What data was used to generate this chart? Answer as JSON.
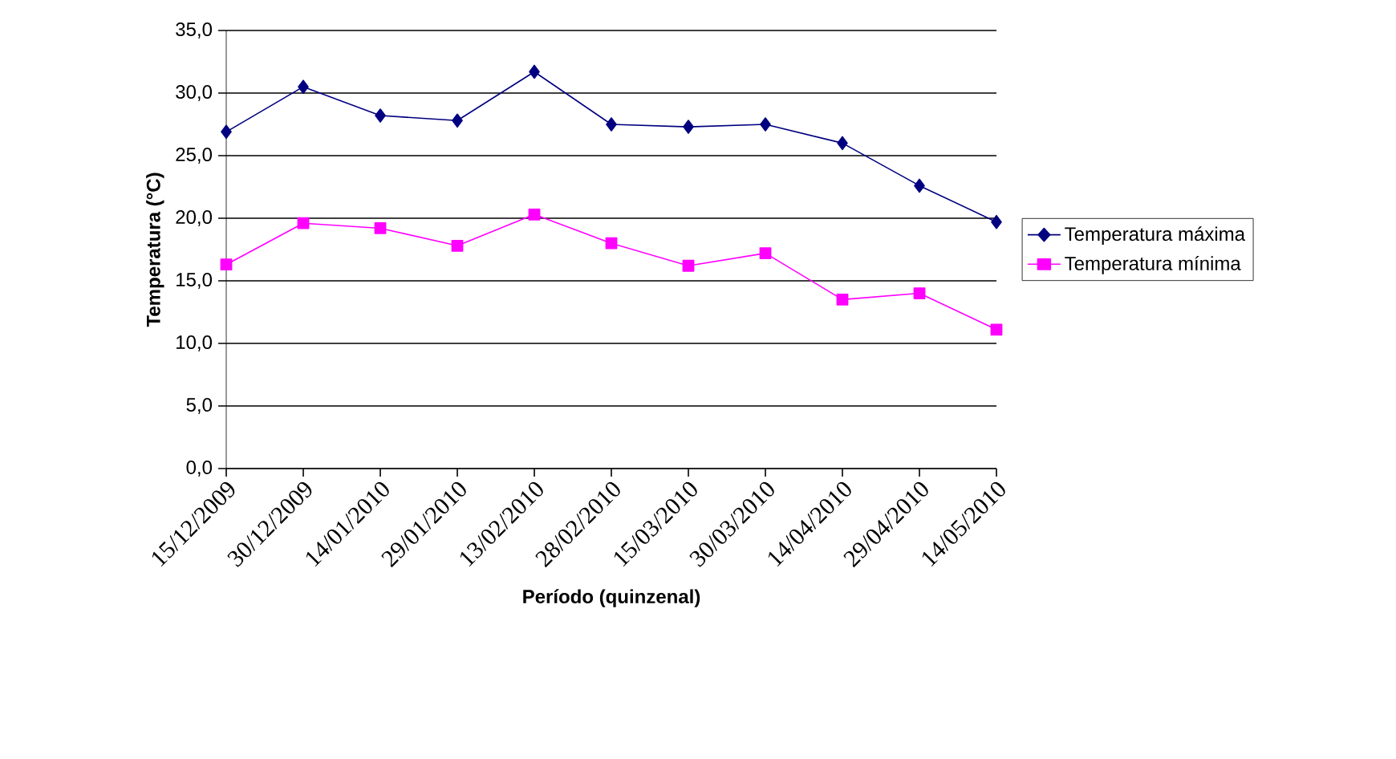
{
  "chart_data": {
    "type": "line",
    "xlabel": "Período (quinzenal)",
    "ylabel": "Temperatura (°C)",
    "categories": [
      "15/12/2009",
      "30/12/2009",
      "14/01/2010",
      "29/01/2010",
      "13/02/2010",
      "28/02/2010",
      "15/03/2010",
      "30/03/2010",
      "14/04/2010",
      "29/04/2010",
      "14/05/2010"
    ],
    "series": [
      {
        "name": "Temperatura máxima",
        "color": "#000080",
        "marker": "diamond",
        "values": [
          26.9,
          30.5,
          28.2,
          27.8,
          31.7,
          27.5,
          27.3,
          27.5,
          26.0,
          22.6,
          19.7
        ]
      },
      {
        "name": "Temperatura mínima",
        "color": "#ff00ff",
        "marker": "square",
        "values": [
          16.3,
          19.6,
          19.2,
          17.8,
          20.3,
          18.0,
          16.2,
          17.2,
          13.5,
          14.0,
          11.1
        ]
      }
    ],
    "ylim": [
      0,
      35
    ],
    "yticks": [
      {
        "value": 0,
        "label": "0,0"
      },
      {
        "value": 5,
        "label": "5,0"
      },
      {
        "value": 10,
        "label": "10,0"
      },
      {
        "value": 15,
        "label": "15,0"
      },
      {
        "value": 20,
        "label": "20,0"
      },
      {
        "value": 25,
        "label": "25,0"
      },
      {
        "value": 30,
        "label": "30,0"
      },
      {
        "value": 35,
        "label": "35,0"
      }
    ],
    "grid": "y",
    "legend": "right"
  }
}
